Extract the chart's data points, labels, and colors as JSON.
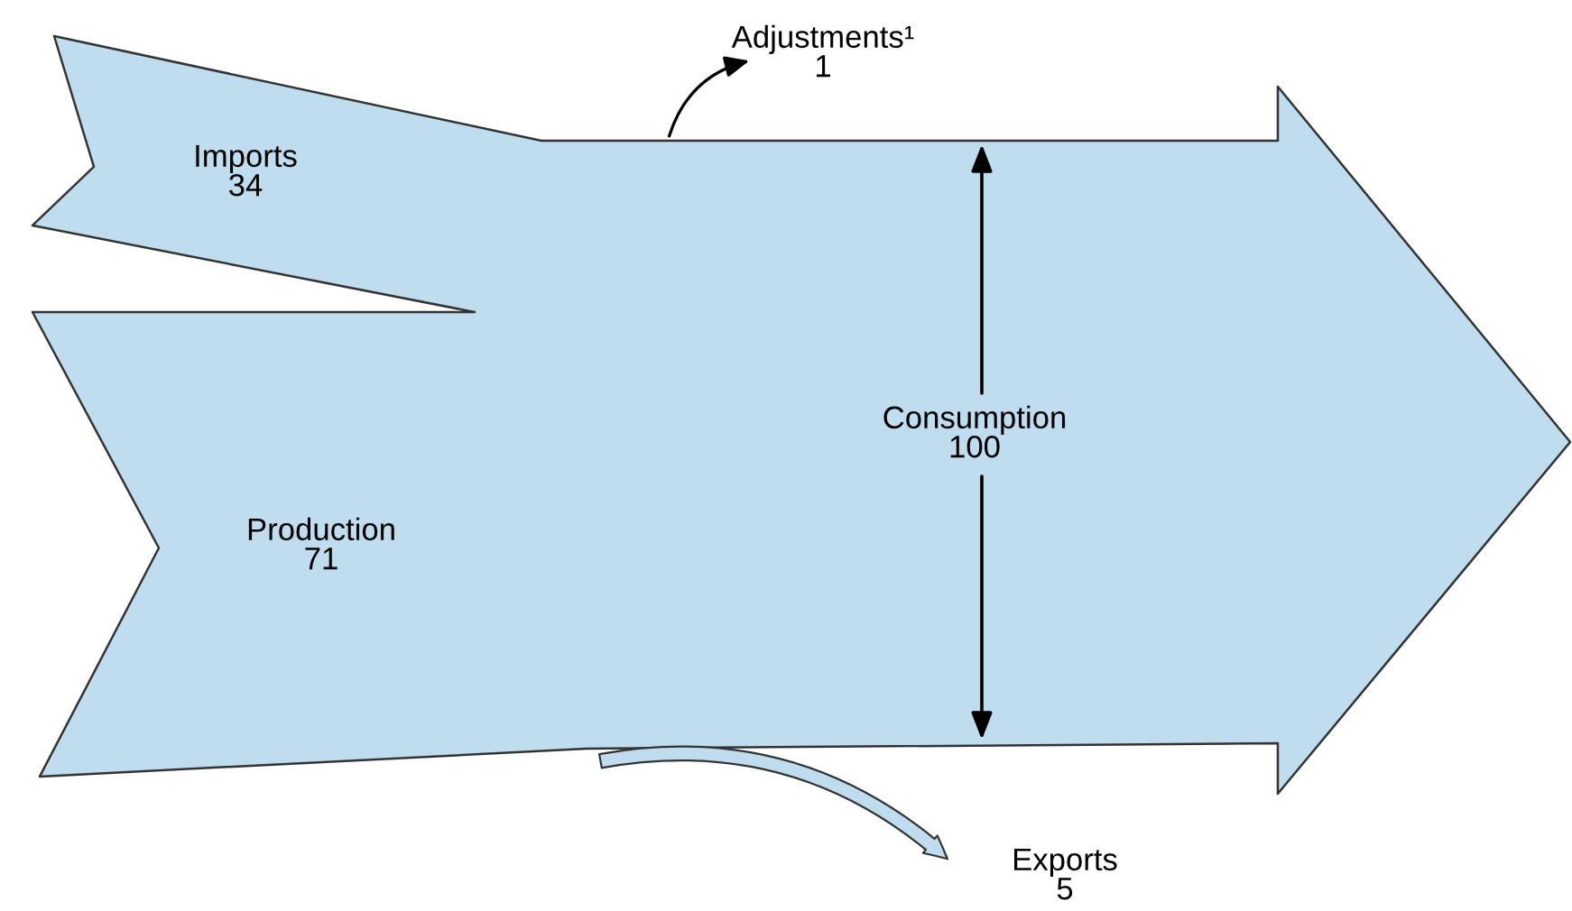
{
  "chart_data": {
    "type": "other",
    "categories": [
      "Imports",
      "Production",
      "Adjustments¹",
      "Consumption",
      "Exports"
    ],
    "values": [
      34,
      71,
      1,
      100,
      5
    ],
    "color": "#c0dcef",
    "data_labels": true
  }
}
